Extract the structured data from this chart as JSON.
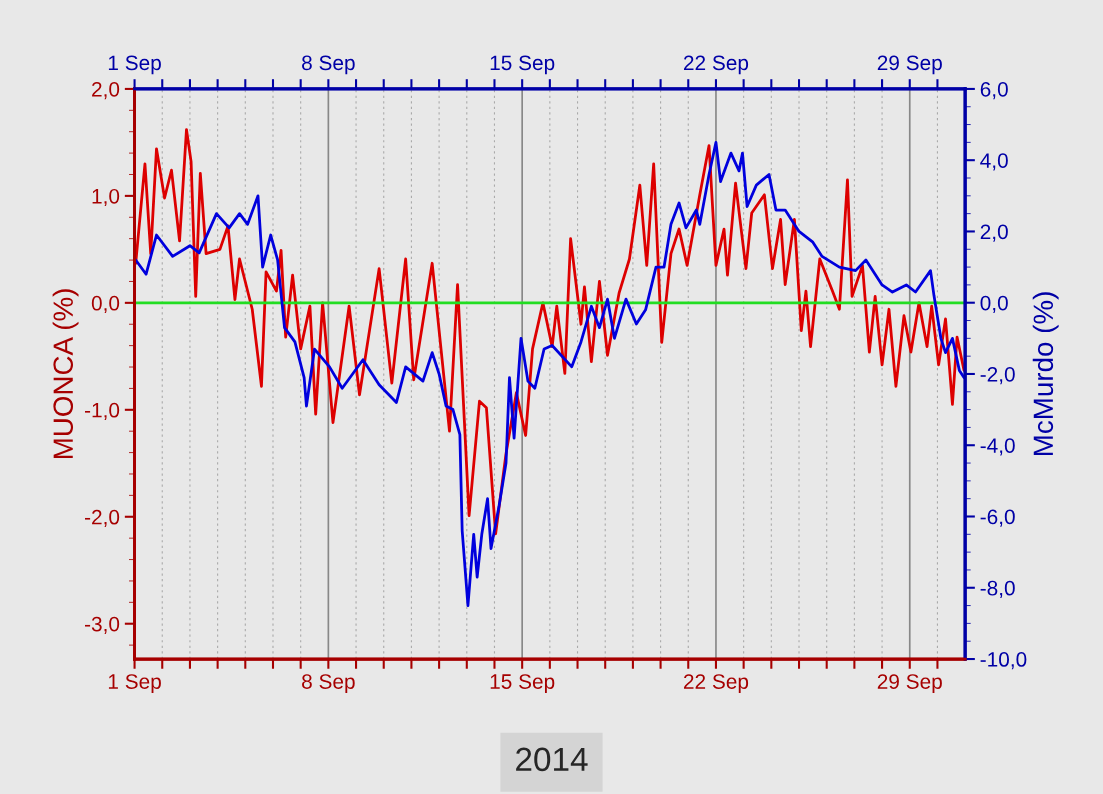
{
  "chart_data": {
    "type": "line",
    "ylabel": "MUONCA (%)",
    "y2label": "McMurdo (%)",
    "xlim": [
      "2014-09-01",
      "2014-10-01"
    ],
    "xticks": [
      {
        "value": "2014-09-01",
        "label": "1 Sep"
      },
      {
        "value": "2014-09-02",
        "label": null
      },
      {
        "value": "2014-09-03",
        "label": null
      },
      {
        "value": "2014-09-04",
        "label": null
      },
      {
        "value": "2014-09-05",
        "label": null
      },
      {
        "value": "2014-09-06",
        "label": null
      },
      {
        "value": "2014-09-07",
        "label": null
      },
      {
        "value": "2014-09-08",
        "label": "8 Sep"
      },
      {
        "value": "2014-09-09",
        "label": null
      },
      {
        "value": "2014-09-10",
        "label": null
      },
      {
        "value": "2014-09-11",
        "label": null
      },
      {
        "value": "2014-09-12",
        "label": null
      },
      {
        "value": "2014-09-13",
        "label": null
      },
      {
        "value": "2014-09-14",
        "label": null
      },
      {
        "value": "2014-09-15",
        "label": "15 Sep"
      },
      {
        "value": "2014-09-16",
        "label": null
      },
      {
        "value": "2014-09-17",
        "label": null
      },
      {
        "value": "2014-09-18",
        "label": null
      },
      {
        "value": "2014-09-19",
        "label": null
      },
      {
        "value": "2014-09-20",
        "label": null
      },
      {
        "value": "2014-09-21",
        "label": null
      },
      {
        "value": "2014-09-22",
        "label": "22 Sep"
      },
      {
        "value": "2014-09-23",
        "label": null
      },
      {
        "value": "2014-09-24",
        "label": null
      },
      {
        "value": "2014-09-25",
        "label": null
      },
      {
        "value": "2014-09-26",
        "label": null
      },
      {
        "value": "2014-09-27",
        "label": null
      },
      {
        "value": "2014-09-28",
        "label": null
      },
      {
        "value": "2014-09-29",
        "label": "29 Sep"
      },
      {
        "value": "2014-09-30",
        "label": null
      }
    ],
    "x2lim": [
      "2014-09-01",
      "2014-10-01"
    ],
    "x2ticks": [
      {
        "value": "2014-09-01",
        "label": "1 Sep"
      },
      {
        "value": "2014-09-02",
        "label": null
      },
      {
        "value": "2014-09-03",
        "label": null
      },
      {
        "value": "2014-09-04",
        "label": null
      },
      {
        "value": "2014-09-05",
        "label": null
      },
      {
        "value": "2014-09-06",
        "label": null
      },
      {
        "value": "2014-09-07",
        "label": null
      },
      {
        "value": "2014-09-08",
        "label": "8 Sep"
      },
      {
        "value": "2014-09-09",
        "label": null
      },
      {
        "value": "2014-09-10",
        "label": null
      },
      {
        "value": "2014-09-11",
        "label": null
      },
      {
        "value": "2014-09-12",
        "label": null
      },
      {
        "value": "2014-09-13",
        "label": null
      },
      {
        "value": "2014-09-14",
        "label": null
      },
      {
        "value": "2014-09-15",
        "label": "15 Sep"
      },
      {
        "value": "2014-09-16",
        "label": null
      },
      {
        "value": "2014-09-17",
        "label": null
      },
      {
        "value": "2014-09-18",
        "label": null
      },
      {
        "value": "2014-09-19",
        "label": null
      },
      {
        "value": "2014-09-20",
        "label": null
      },
      {
        "value": "2014-09-21",
        "label": null
      },
      {
        "value": "2014-09-22",
        "label": "22 Sep"
      },
      {
        "value": "2014-09-23",
        "label": null
      },
      {
        "value": "2014-09-24",
        "label": null
      },
      {
        "value": "2014-09-25",
        "label": null
      },
      {
        "value": "2014-09-26",
        "label": null
      },
      {
        "value": "2014-09-27",
        "label": null
      },
      {
        "value": "2014-09-28",
        "label": null
      },
      {
        "value": "2014-09-29",
        "label": "29 Sep"
      },
      {
        "value": "2014-09-30",
        "label": null
      }
    ],
    "ylim": [
      -3.33,
      2.0
    ],
    "yticks": [
      {
        "value": -3.0,
        "label": "-3,0"
      },
      {
        "value": -2.0,
        "label": "-2,0"
      },
      {
        "value": -1.0,
        "label": "-1,0"
      },
      {
        "value": 0.0,
        "label": "0,0"
      },
      {
        "value": 1.0,
        "label": "1,0"
      },
      {
        "value": 2.0,
        "label": "2,0"
      }
    ],
    "y2lim": [
      -10.0,
      6.0
    ],
    "y2ticks": [
      {
        "value": -10.0,
        "label": "-10,0"
      },
      {
        "value": -8.0,
        "label": "-8,0"
      },
      {
        "value": -6.0,
        "label": "-6,0"
      },
      {
        "value": -4.0,
        "label": "-4,0"
      },
      {
        "value": -2.0,
        "label": "-2,0"
      },
      {
        "value": 0.0,
        "label": "0,0"
      },
      {
        "value": 2.0,
        "label": "2,0"
      },
      {
        "value": 4.0,
        "label": "4,0"
      },
      {
        "value": 6.0,
        "label": "6,0"
      }
    ],
    "grid": "x",
    "marker": "none",
    "line_style": "solid",
    "ref_lines": [
      {
        "axis": "y",
        "value": 0,
        "color": "#22dd22"
      }
    ],
    "annotations": [
      "2014"
    ],
    "series": [
      {
        "color": "#0000dd",
        "axis": "y2",
        "x": [
          "2014-09-01T01:00",
          "2014-09-01T10:00",
          "2014-09-01T19:00",
          "2014-09-02T09:00",
          "2014-09-03T00:00",
          "2014-09-03T08:00",
          "2014-09-03T23:00",
          "2014-09-04T10:00",
          "2014-09-04T19:00",
          "2014-09-05T02:00",
          "2014-09-05T11:00",
          "2014-09-05T15:00",
          "2014-09-05T22:00",
          "2014-09-06T04:00",
          "2014-09-06T10:00",
          "2014-09-06T19:00",
          "2014-09-07T03:00",
          "2014-09-07T05:00",
          "2014-09-07T12:00",
          "2014-09-08T01:00",
          "2014-09-08T12:00",
          "2014-09-09T06:00",
          "2014-09-09T20:00",
          "2014-09-10T11:00",
          "2014-09-10T19:00",
          "2014-09-11T10:00",
          "2014-09-11T18:00",
          "2014-09-12T00:00",
          "2014-09-12T06:00",
          "2014-09-12T12:00",
          "2014-09-12T18:00",
          "2014-09-12T20:00",
          "2014-09-13T01:00",
          "2014-09-13T06:00",
          "2014-09-13T09:00",
          "2014-09-13T13:00",
          "2014-09-13T18:00",
          "2014-09-13T21:00",
          "2014-09-14T04:00",
          "2014-09-14T10:00",
          "2014-09-14T13:00",
          "2014-09-14T17:00",
          "2014-09-14T23:00",
          "2014-09-15T05:00",
          "2014-09-15T11:00",
          "2014-09-15T19:00",
          "2014-09-16T02:00",
          "2014-09-16T19:00",
          "2014-09-17T03:00",
          "2014-09-17T12:00",
          "2014-09-17T19:00",
          "2014-09-18T02:00",
          "2014-09-18T08:00",
          "2014-09-18T18:00",
          "2014-09-19T03:00",
          "2014-09-19T11:00",
          "2014-09-19T20:00",
          "2014-09-20T03:00",
          "2014-09-20T09:00",
          "2014-09-20T16:00",
          "2014-09-20T22:00",
          "2014-09-21T07:00",
          "2014-09-21T10:00",
          "2014-09-21T18:00",
          "2014-09-22T00:00",
          "2014-09-22T04:00",
          "2014-09-22T13:00",
          "2014-09-22T20:00",
          "2014-09-22T23:00",
          "2014-09-23T03:00",
          "2014-09-23T11:00",
          "2014-09-23T22:00",
          "2014-09-24T04:00",
          "2014-09-24T12:00",
          "2014-09-25T00:00",
          "2014-09-25T12:00",
          "2014-09-25T20:00",
          "2014-09-26T11:00",
          "2014-09-27T01:00",
          "2014-09-27T10:00",
          "2014-09-28T00:00",
          "2014-09-28T09:00",
          "2014-09-28T21:00",
          "2014-09-29T05:00",
          "2014-09-29T18:00",
          "2014-09-29T21:00",
          "2014-09-30T03:00",
          "2014-09-30T07:00",
          "2014-09-30T13:00",
          "2014-09-30T19:00",
          "2014-09-30T23:00"
        ],
        "values": [
          1.2,
          0.8,
          1.9,
          1.3,
          1.6,
          1.4,
          2.5,
          2.1,
          2.5,
          2.2,
          3.0,
          1.0,
          1.9,
          1.2,
          -0.7,
          -1.1,
          -2.1,
          -2.9,
          -1.3,
          -1.8,
          -2.4,
          -1.6,
          -2.3,
          -2.8,
          -1.8,
          -2.2,
          -1.4,
          -2.0,
          -2.9,
          -3.0,
          -3.7,
          -6.4,
          -8.5,
          -6.5,
          -7.7,
          -6.5,
          -5.5,
          -6.9,
          -5.7,
          -4.5,
          -2.1,
          -3.8,
          -1.0,
          -2.2,
          -2.4,
          -1.3,
          -1.2,
          -1.8,
          -1.1,
          -0.1,
          -0.7,
          0.1,
          -1.0,
          0.1,
          -0.6,
          -0.2,
          1.0,
          1.0,
          2.2,
          2.8,
          2.1,
          2.6,
          2.2,
          3.6,
          4.5,
          3.4,
          4.2,
          3.7,
          4.2,
          2.7,
          3.3,
          3.6,
          2.6,
          2.6,
          2.0,
          1.7,
          1.3,
          1.0,
          0.9,
          1.2,
          0.5,
          0.3,
          0.5,
          0.3,
          0.9,
          0.2,
          -1.0,
          -1.4,
          -1.0,
          -1.9,
          -2.1
        ]
      },
      {
        "color": "#dd0000",
        "axis": "y",
        "x": [
          "2014-09-01T01:00",
          "2014-09-01T09:00",
          "2014-09-01T14:00",
          "2014-09-01T19:00",
          "2014-09-02T02:00",
          "2014-09-02T08:00",
          "2014-09-02T15:00",
          "2014-09-02T21:00",
          "2014-09-03T01:00",
          "2014-09-03T05:00",
          "2014-09-03T09:00",
          "2014-09-03T14:00",
          "2014-09-04T02:00",
          "2014-09-04T09:00",
          "2014-09-04T15:00",
          "2014-09-04T19:00",
          "2014-09-05T06:00",
          "2014-09-05T14:00",
          "2014-09-05T18:00",
          "2014-09-06T03:00",
          "2014-09-06T07:00",
          "2014-09-06T11:00",
          "2014-09-06T17:00",
          "2014-09-07T00:00",
          "2014-09-07T08:00",
          "2014-09-07T13:00",
          "2014-09-07T19:00",
          "2014-09-08T04:00",
          "2014-09-08T18:00",
          "2014-09-09T03:00",
          "2014-09-09T20:00",
          "2014-09-10T07:00",
          "2014-09-10T19:00",
          "2014-09-11T02:00",
          "2014-09-11T18:00",
          "2014-09-12T09:00",
          "2014-09-12T16:00",
          "2014-09-13T02:00",
          "2014-09-13T11:00",
          "2014-09-13T17:00",
          "2014-09-14T01:00",
          "2014-09-14T10:00",
          "2014-09-14T19:00",
          "2014-09-15T03:00",
          "2014-09-15T09:00",
          "2014-09-15T18:00",
          "2014-09-16T02:00",
          "2014-09-16T06:00",
          "2014-09-16T13:00",
          "2014-09-16T18:00",
          "2014-09-17T03:00",
          "2014-09-17T06:00",
          "2014-09-17T12:00",
          "2014-09-17T19:00",
          "2014-09-18T02:00",
          "2014-09-18T12:00",
          "2014-09-18T21:00",
          "2014-09-19T06:00",
          "2014-09-19T12:00",
          "2014-09-19T18:00",
          "2014-09-20T01:00",
          "2014-09-20T09:00",
          "2014-09-20T16:00",
          "2014-09-20T23:00",
          "2014-09-21T10:00",
          "2014-09-21T18:00",
          "2014-09-22T00:00",
          "2014-09-22T07:00",
          "2014-09-22T10:00",
          "2014-09-22T17:00",
          "2014-09-23T02:00",
          "2014-09-23T07:00",
          "2014-09-23T18:00",
          "2014-09-24T01:00",
          "2014-09-24T08:00",
          "2014-09-24T12:00",
          "2014-09-24T20:00",
          "2014-09-25T02:00",
          "2014-09-25T06:00",
          "2014-09-25T10:00",
          "2014-09-25T18:00",
          "2014-09-26T05:00",
          "2014-09-26T11:00",
          "2014-09-26T18:00",
          "2014-09-26T22:00",
          "2014-09-27T07:00",
          "2014-09-27T13:00",
          "2014-09-27T18:00",
          "2014-09-28T00:00",
          "2014-09-28T06:00",
          "2014-09-28T12:00",
          "2014-09-28T19:00",
          "2014-09-29T01:00",
          "2014-09-29T08:00",
          "2014-09-29T15:00",
          "2014-09-29T19:00",
          "2014-09-30T01:00",
          "2014-09-30T07:00",
          "2014-09-30T13:00",
          "2014-09-30T17:00",
          "2014-09-30T23:00"
        ],
        "values": [
          0.37,
          1.3,
          0.46,
          1.44,
          0.98,
          1.24,
          0.58,
          1.62,
          1.32,
          0.06,
          1.21,
          0.46,
          0.5,
          0.72,
          0.03,
          0.41,
          -0.06,
          -0.78,
          0.29,
          0.11,
          0.49,
          -0.32,
          0.26,
          -0.43,
          -0.03,
          -1.04,
          0.0,
          -1.12,
          -0.03,
          -0.86,
          0.32,
          -0.75,
          0.41,
          -0.72,
          0.37,
          -1.2,
          0.17,
          -1.99,
          -0.92,
          -0.98,
          -2.16,
          -1.41,
          -0.84,
          -1.24,
          -0.43,
          0.0,
          -0.41,
          -0.03,
          -0.66,
          0.6,
          -0.2,
          0.15,
          -0.55,
          0.2,
          -0.49,
          0.09,
          0.41,
          1.1,
          0.35,
          1.3,
          -0.37,
          0.46,
          0.69,
          0.35,
          1.01,
          1.47,
          0.35,
          0.69,
          0.26,
          1.12,
          0.32,
          0.84,
          1.01,
          0.32,
          0.78,
          0.17,
          0.78,
          -0.26,
          0.11,
          -0.41,
          0.41,
          0.11,
          -0.06,
          1.15,
          0.06,
          0.35,
          -0.46,
          0.06,
          -0.58,
          -0.06,
          -0.78,
          -0.12,
          -0.46,
          0.0,
          -0.41,
          -0.03,
          -0.58,
          -0.15,
          -0.95,
          -0.32,
          -0.63
        ]
      }
    ]
  }
}
